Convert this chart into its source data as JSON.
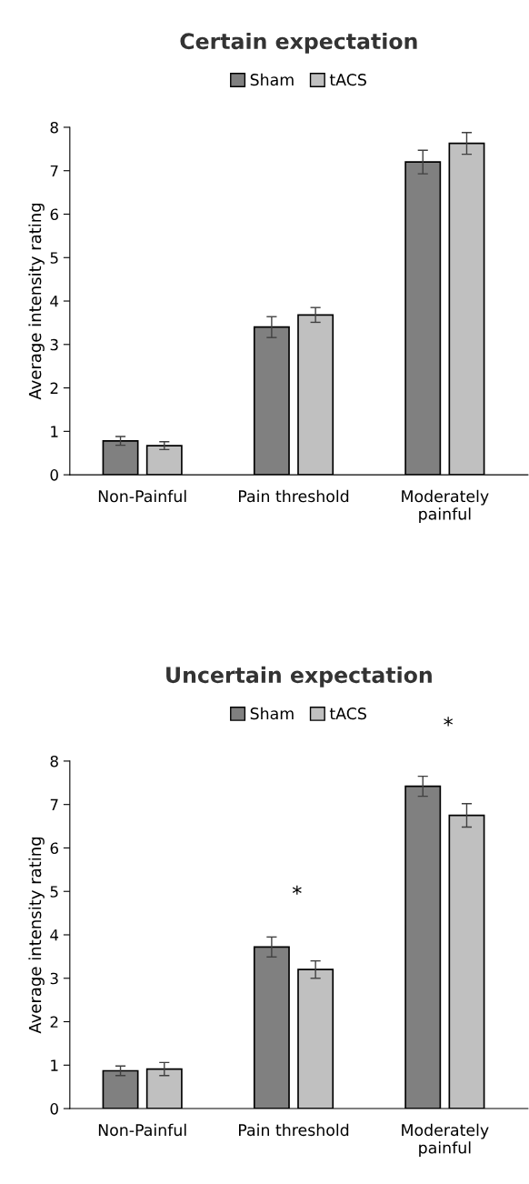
{
  "chart_data": [
    {
      "type": "bar",
      "title": "Certain expectation",
      "ylabel": "Average intensity rating",
      "categories": [
        "Non-Painful",
        "Pain threshold",
        "Moderately painful"
      ],
      "ylim": [
        0,
        8
      ],
      "yticks": [
        0,
        1,
        2,
        3,
        4,
        5,
        6,
        7,
        8
      ],
      "legend": "top",
      "grid": false,
      "series": [
        {
          "name": "Sham",
          "color": "#808080",
          "values": [
            0.78,
            3.4,
            7.2
          ],
          "errors": [
            0.1,
            0.24,
            0.27
          ]
        },
        {
          "name": "tACS",
          "color": "#c0c0c0",
          "values": [
            0.67,
            3.68,
            7.63
          ],
          "errors": [
            0.09,
            0.17,
            0.25
          ]
        }
      ]
    },
    {
      "type": "bar",
      "title": "Uncertain expectation",
      "ylabel": "Average intensity rating",
      "categories": [
        "Non-Painful",
        "Pain threshold",
        "Moderately painful"
      ],
      "ylim": [
        0,
        8
      ],
      "yticks": [
        0,
        1,
        2,
        3,
        4,
        5,
        6,
        7,
        8
      ],
      "legend": "top",
      "grid": false,
      "series": [
        {
          "name": "Sham",
          "color": "#808080",
          "values": [
            0.87,
            3.72,
            7.42
          ],
          "errors": [
            0.11,
            0.23,
            0.23
          ]
        },
        {
          "name": "tACS",
          "color": "#c0c0c0",
          "values": [
            0.91,
            3.2,
            6.75
          ],
          "errors": [
            0.15,
            0.2,
            0.27
          ]
        }
      ],
      "annotations": [
        "*",
        "*"
      ]
    }
  ]
}
